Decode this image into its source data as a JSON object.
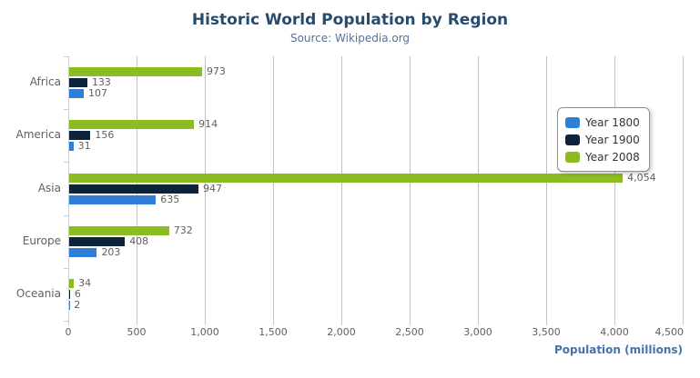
{
  "context_menu": {
    "icon": "menu-icon"
  },
  "chart_data": {
    "type": "bar",
    "orientation": "horizontal",
    "title": "Historic World Population by Region",
    "subtitle": "Source: Wikipedia.org",
    "categories": [
      "Africa",
      "America",
      "Asia",
      "Europe",
      "Oceania"
    ],
    "series": [
      {
        "name": "Year 1800",
        "color": "#2f7ed8",
        "values": [
          107,
          31,
          635,
          203,
          2
        ]
      },
      {
        "name": "Year 1900",
        "color": "#0d233a",
        "values": [
          133,
          156,
          947,
          408,
          6
        ]
      },
      {
        "name": "Year 2008",
        "color": "#8bbc21",
        "values": [
          973,
          914,
          4054,
          732,
          34
        ]
      }
    ],
    "series_display_order_top_to_bottom": [
      "Year 2008",
      "Year 1900",
      "Year 1800"
    ],
    "xlabel": "Population (millions)",
    "ylabel": "",
    "xlim": [
      0,
      4500
    ],
    "x_ticks": [
      0,
      500,
      1000,
      1500,
      2000,
      2500,
      3000,
      3500,
      4000,
      4500
    ],
    "grid": true,
    "data_labels": true,
    "legend_position": "inside-right"
  },
  "colors": {
    "title": "#274b6d",
    "subtitle": "#53749c",
    "axis_title": "#4572a7",
    "axis_labels": "#606060",
    "data_labels": "#606060",
    "category_labels": "#606060",
    "gridline": "#c0c0c0",
    "axis_line": "#c0d0e0",
    "legend_border": "#909090",
    "legend_text": "#333333",
    "menu_icon": "#666666",
    "background": "#ffffff"
  }
}
